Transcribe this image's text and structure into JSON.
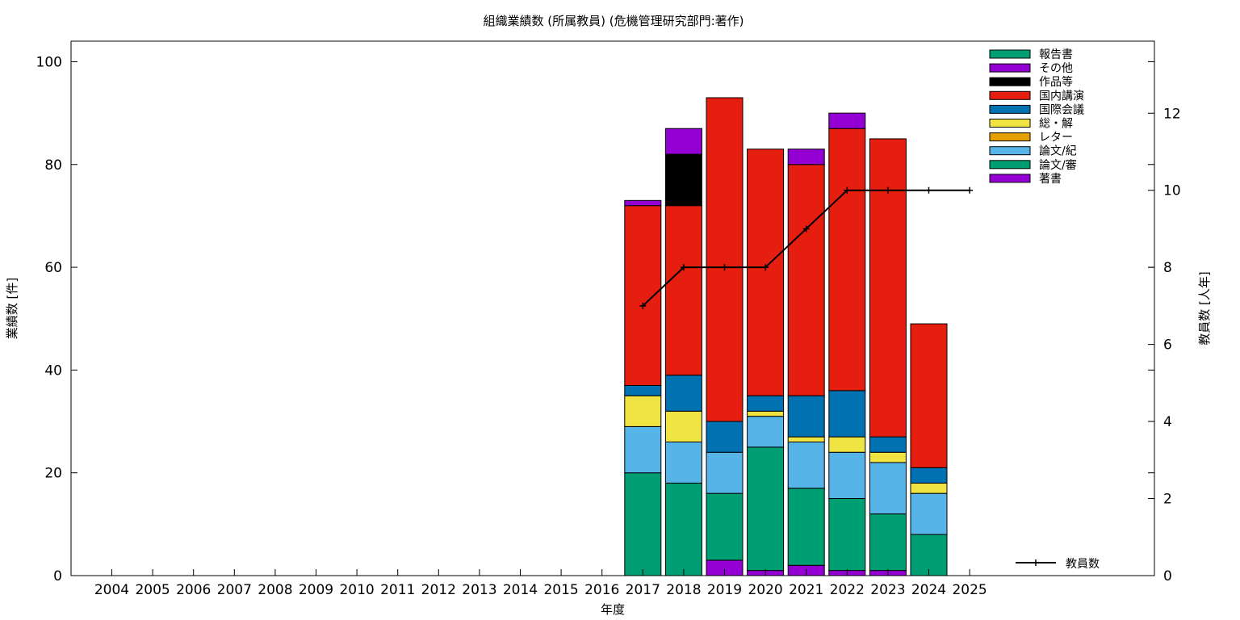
{
  "chart_data": {
    "type": "bar",
    "stacked": true,
    "title": "組織業績数 (所属教員) (危機管理研究部門:著作)",
    "xlabel": "年度",
    "ylabel": "業績数 [件]",
    "y2label": "教員数 [人年]",
    "ylim": [
      0,
      104
    ],
    "y2lim": [
      0,
      13.87
    ],
    "yticks": [
      0,
      20,
      40,
      60,
      80,
      100
    ],
    "y2ticks": [
      0,
      2,
      4,
      6,
      8,
      10,
      12
    ],
    "grid": false,
    "legend_position": "top-right",
    "categories": [
      "2004",
      "2005",
      "2006",
      "2007",
      "2008",
      "2009",
      "2010",
      "2011",
      "2012",
      "2013",
      "2014",
      "2015",
      "2016",
      "2017",
      "2018",
      "2019",
      "2020",
      "2021",
      "2022",
      "2023",
      "2024",
      "2025"
    ],
    "series": [
      {
        "name": "著書",
        "color": "#9400d3",
        "values": [
          0,
          0,
          0,
          0,
          0,
          0,
          0,
          0,
          0,
          0,
          0,
          0,
          0,
          0,
          0,
          3,
          1,
          2,
          1,
          1,
          0,
          0
        ]
      },
      {
        "name": "論文/審",
        "color": "#009e73",
        "values": [
          0,
          0,
          0,
          0,
          0,
          0,
          0,
          0,
          0,
          0,
          0,
          0,
          0,
          20,
          18,
          13,
          24,
          15,
          14,
          11,
          8,
          0
        ]
      },
      {
        "name": "論文/紀",
        "color": "#56b4e9",
        "values": [
          0,
          0,
          0,
          0,
          0,
          0,
          0,
          0,
          0,
          0,
          0,
          0,
          0,
          9,
          8,
          8,
          6,
          9,
          9,
          10,
          8,
          0
        ]
      },
      {
        "name": "レター",
        "color": "#e69f00",
        "values": [
          0,
          0,
          0,
          0,
          0,
          0,
          0,
          0,
          0,
          0,
          0,
          0,
          0,
          0,
          0,
          0,
          0,
          0,
          0,
          0,
          0,
          0
        ]
      },
      {
        "name": "総・解",
        "color": "#f0e442",
        "values": [
          0,
          0,
          0,
          0,
          0,
          0,
          0,
          0,
          0,
          0,
          0,
          0,
          0,
          6,
          6,
          0,
          1,
          1,
          3,
          2,
          2,
          0
        ]
      },
      {
        "name": "国際会議",
        "color": "#0072b2",
        "values": [
          0,
          0,
          0,
          0,
          0,
          0,
          0,
          0,
          0,
          0,
          0,
          0,
          0,
          2,
          7,
          6,
          3,
          8,
          9,
          3,
          3,
          0
        ]
      },
      {
        "name": "国内講演",
        "color": "#e51e10",
        "values": [
          0,
          0,
          0,
          0,
          0,
          0,
          0,
          0,
          0,
          0,
          0,
          0,
          0,
          35,
          33,
          63,
          48,
          45,
          51,
          58,
          28,
          0
        ]
      },
      {
        "name": "作品等",
        "color": "#000000",
        "values": [
          0,
          0,
          0,
          0,
          0,
          0,
          0,
          0,
          0,
          0,
          0,
          0,
          0,
          0,
          10,
          0,
          0,
          0,
          0,
          0,
          0,
          0
        ]
      },
      {
        "name": "その他",
        "color": "#9400d3",
        "values": [
          0,
          0,
          0,
          0,
          0,
          0,
          0,
          0,
          0,
          0,
          0,
          0,
          0,
          1,
          5,
          0,
          0,
          3,
          3,
          0,
          0,
          0
        ]
      },
      {
        "name": "報告書",
        "color": "#009e73",
        "values": [
          0,
          0,
          0,
          0,
          0,
          0,
          0,
          0,
          0,
          0,
          0,
          0,
          0,
          0,
          0,
          0,
          0,
          0,
          0,
          0,
          0,
          0
        ]
      }
    ],
    "legend_order": [
      "報告書",
      "その他",
      "作品等",
      "国内講演",
      "国際会議",
      "総・解",
      "レター",
      "論文/紀",
      "論文/審",
      "著書"
    ],
    "line_series": {
      "name": "教員数",
      "color": "#000000",
      "axis": "y2",
      "x": [
        "2017",
        "2018",
        "2019",
        "2020",
        "2021",
        "2022",
        "2023",
        "2024",
        "2025"
      ],
      "values": [
        7,
        8,
        8,
        8,
        9,
        10,
        10,
        10,
        10
      ]
    }
  }
}
